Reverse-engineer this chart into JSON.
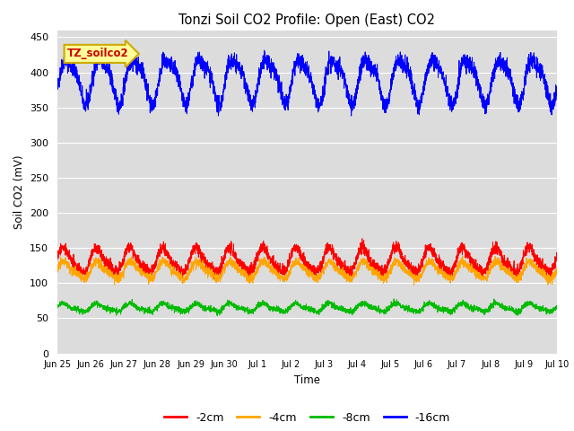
{
  "title": "Tonzi Soil CO2 Profile: Open (East) CO2",
  "ylabel": "Soil CO2 (mV)",
  "xlabel": "Time",
  "background_color": "#ffffff",
  "plot_bg_color": "#dcdcdc",
  "ylim": [
    0,
    460
  ],
  "yticks": [
    0,
    50,
    100,
    150,
    200,
    250,
    300,
    350,
    400,
    450
  ],
  "x_labels": [
    "Jun 25",
    "Jun 26",
    "Jun 27",
    "Jun 28",
    "Jun 29",
    "Jun 30",
    "Jul 1",
    "Jul 2",
    "Jul 3",
    "Jul 4",
    "Jul 5",
    "Jul 6",
    "Jul 7",
    "Jul 8",
    "Jul 9",
    "Jul 10"
  ],
  "colors": {
    "2cm": "#ff0000",
    "4cm": "#ffa500",
    "8cm": "#00bb00",
    "16cm": "#0000ff"
  },
  "watermark_text": "TZ_soilco2",
  "watermark_bg": "#ffff99",
  "watermark_border": "#ccaa00",
  "n_points": 3600,
  "days": 15,
  "series_16cm_base": 390,
  "series_16cm_amp": 30,
  "series_16cm_noise": 6,
  "series_2cm_base": 132,
  "series_2cm_amp": 16,
  "series_2cm_noise": 4,
  "series_4cm_base": 118,
  "series_4cm_amp": 11,
  "series_4cm_noise": 3,
  "series_8cm_base": 65,
  "series_8cm_amp": 5,
  "series_8cm_noise": 2
}
